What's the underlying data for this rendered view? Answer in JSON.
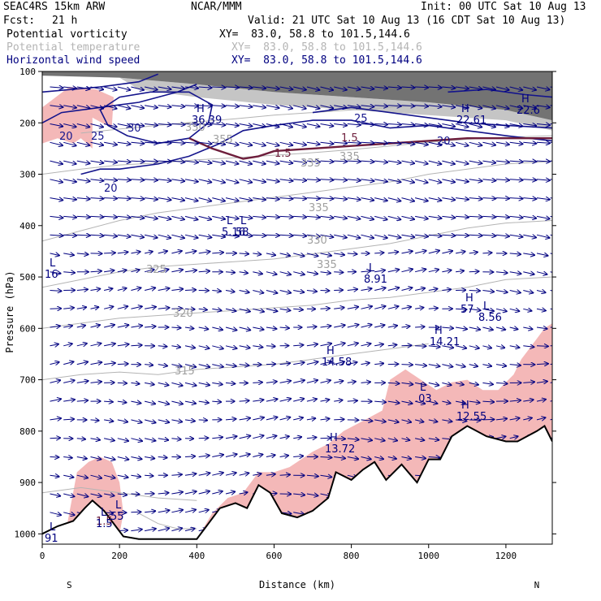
{
  "header": {
    "model": "SEAC4RS 15km ARW",
    "center": "NCAR/MMM",
    "init": "Init: 00 UTC Sat 10 Aug 13",
    "fcst_label": "Fcst:",
    "fcst_value": "21 h",
    "valid": "Valid: 21 UTC Sat 10 Aug 13 (16 CDT Sat 10 Aug 13)",
    "fields": [
      {
        "name": "Potential vorticity",
        "xy": "XY=  83.0, 58.8 to 101.5,144.6",
        "color": "#000000"
      },
      {
        "name": "Potential temperature",
        "xy": "XY=  83.0, 58.8 to 101.5,144.6",
        "color": "#b4b4b4"
      },
      {
        "name": "Horizontal wind speed",
        "xy": "XY=  83.0, 58.8 to 101.5,144.6",
        "color": "#000080"
      }
    ]
  },
  "chart_data": {
    "type": "cross-section",
    "xlabel": "Distance (km)",
    "ylabel": "Pressure (hPa)",
    "xlim": [
      0,
      1320
    ],
    "ylim": [
      1020,
      100
    ],
    "x_ticks": [
      0,
      200,
      400,
      600,
      800,
      1000,
      1200
    ],
    "y_ticks": [
      100,
      200,
      300,
      400,
      500,
      600,
      700,
      800,
      900,
      1000
    ],
    "x_end_labels": {
      "left": "S",
      "right": "N"
    },
    "terrain_surface": [
      [
        0,
        1000
      ],
      [
        40,
        985
      ],
      [
        80,
        975
      ],
      [
        110,
        950
      ],
      [
        130,
        935
      ],
      [
        160,
        955
      ],
      [
        190,
        985
      ],
      [
        210,
        1005
      ],
      [
        250,
        1010
      ],
      [
        400,
        1010
      ],
      [
        430,
        980
      ],
      [
        460,
        950
      ],
      [
        500,
        940
      ],
      [
        530,
        950
      ],
      [
        560,
        905
      ],
      [
        590,
        920
      ],
      [
        620,
        960
      ],
      [
        660,
        968
      ],
      [
        700,
        955
      ],
      [
        740,
        930
      ],
      [
        760,
        880
      ],
      [
        800,
        895
      ],
      [
        830,
        875
      ],
      [
        860,
        860
      ],
      [
        890,
        895
      ],
      [
        930,
        865
      ],
      [
        970,
        900
      ],
      [
        1000,
        855
      ],
      [
        1030,
        855
      ],
      [
        1060,
        810
      ],
      [
        1100,
        790
      ],
      [
        1150,
        810
      ],
      [
        1200,
        820
      ],
      [
        1230,
        820
      ],
      [
        1280,
        800
      ],
      [
        1300,
        790
      ],
      [
        1320,
        820
      ]
    ],
    "potential_temperature_labels": [
      "315",
      "320",
      "325",
      "330",
      "335",
      "335",
      "350",
      "355",
      "335",
      "335"
    ],
    "wind_speed_labels": [
      "20",
      "25",
      "30",
      "20",
      "25",
      "20"
    ],
    "pv_labels": [
      "1.5",
      "1.5",
      "1.5"
    ],
    "extrema": [
      {
        "type": "H",
        "value": "36.39"
      },
      {
        "type": "H",
        "value": "22.61"
      },
      {
        "type": "H",
        "value": "22.6"
      },
      {
        "type": "L",
        "value": "5.16"
      },
      {
        "type": "L",
        "value": "58"
      },
      {
        "type": "L",
        "value": "16"
      },
      {
        "type": "L",
        "value": "8.91"
      },
      {
        "type": "H",
        "value": "57"
      },
      {
        "type": "L",
        "value": "8.56"
      },
      {
        "type": "H",
        "value": "14.21"
      },
      {
        "type": "H",
        "value": "14.58"
      },
      {
        "type": "L",
        "value": ".03"
      },
      {
        "type": "H",
        "value": "12.55"
      },
      {
        "type": "H",
        "value": "13.72"
      },
      {
        "type": "L",
        "value": "55"
      },
      {
        "type": "L",
        "value": "1.5"
      },
      {
        "type": "L",
        "value": "91"
      }
    ],
    "colors": {
      "pv_fill": "#f4b8b8",
      "pv_contour": "#6e1e3c",
      "theta_contour": "#b4b4b4",
      "wind_contour": "#14148c",
      "wind_vectors": "#000080",
      "stratosphere_shade": "#5a5a5a"
    }
  }
}
